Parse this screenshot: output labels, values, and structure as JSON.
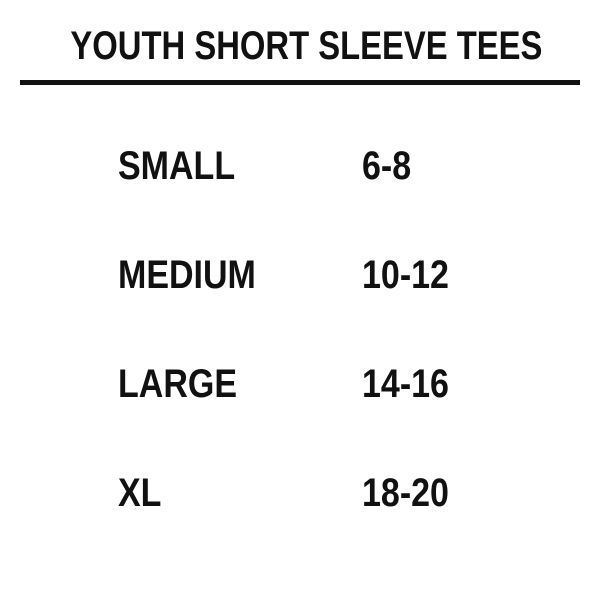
{
  "title": "YOUTH SHORT SLEEVE TEES",
  "rows": [
    {
      "size": "SMALL",
      "range": "6-8"
    },
    {
      "size": "MEDIUM",
      "range": "10-12"
    },
    {
      "size": "LARGE",
      "range": "14-16"
    },
    {
      "size": "XL",
      "range": "18-20"
    }
  ]
}
